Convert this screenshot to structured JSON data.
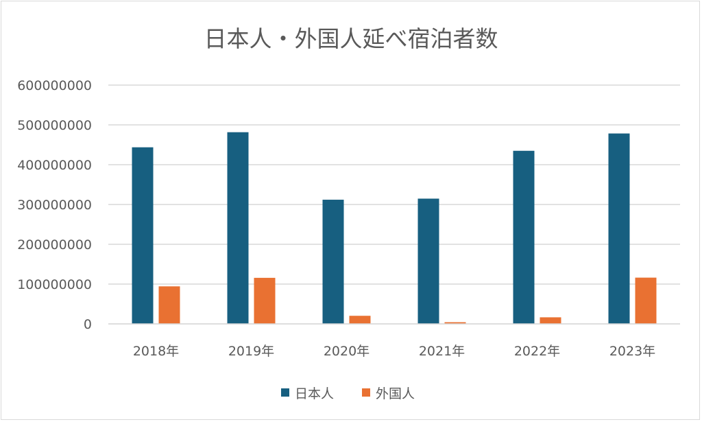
{
  "chart_data": {
    "type": "bar",
    "title": "日本人・外国人延べ宿泊者数",
    "categories": [
      "2018年",
      "2019年",
      "2020年",
      "2021年",
      "2022年",
      "2023年"
    ],
    "series": [
      {
        "name": "日本人",
        "color": "#175F80",
        "values": [
          443700000,
          481600000,
          312000000,
          314700000,
          434900000,
          478400000
        ]
      },
      {
        "name": "外国人",
        "color": "#E97132",
        "values": [
          94300000,
          115700000,
          20300000,
          4200000,
          16500000,
          116200000
        ]
      }
    ],
    "ylim": [
      0,
      600000000
    ],
    "yticks": [
      "0",
      "100000000",
      "200000000",
      "300000000",
      "400000000",
      "500000000",
      "600000000"
    ],
    "grid": true,
    "legend": "bottom"
  }
}
